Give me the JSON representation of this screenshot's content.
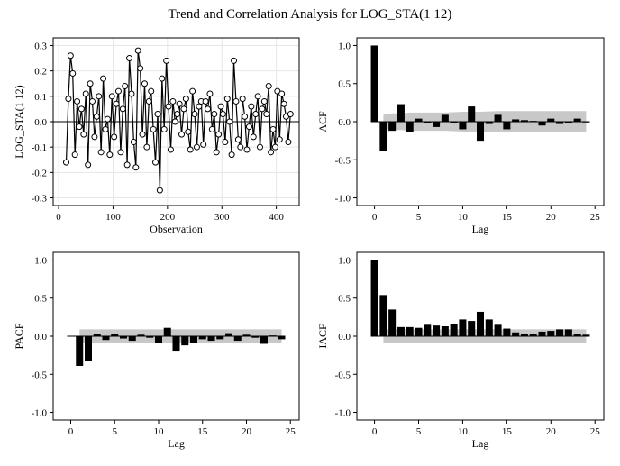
{
  "title": "Trend and Correlation Analysis for LOG_STA(1 12)",
  "chart_data": [
    {
      "type": "line",
      "id": "series",
      "title": "",
      "xlabel": "Observation",
      "ylabel": "LOG_STA(1 12)",
      "xlim": [
        -10,
        442
      ],
      "ylim": [
        -0.33,
        0.33
      ],
      "xticks": [
        0,
        100,
        200,
        300,
        400
      ],
      "yticks": [
        -0.3,
        -0.2,
        -0.1,
        0.0,
        0.1,
        0.2,
        0.3
      ],
      "ytick_labels": [
        "-0.3",
        "-0.2",
        "-0.1",
        "0.0",
        "0.1",
        "0.2",
        "0.3"
      ],
      "grid": true,
      "markers": "open circles",
      "x_start": 14,
      "x_step": 4,
      "y": [
        -0.16,
        0.09,
        0.26,
        0.19,
        -0.13,
        0.08,
        -0.02,
        0.05,
        -0.05,
        0.11,
        -0.17,
        0.15,
        0.08,
        -0.06,
        0.02,
        0.1,
        -0.12,
        0.17,
        -0.03,
        0.01,
        -0.13,
        0.1,
        -0.06,
        0.07,
        0.12,
        -0.12,
        0.05,
        0.14,
        -0.17,
        0.25,
        0.11,
        -0.08,
        -0.18,
        0.28,
        0.21,
        -0.05,
        0.15,
        -0.1,
        0.08,
        0.12,
        -0.03,
        -0.16,
        0.03,
        -0.27,
        0.17,
        -0.03,
        0.24,
        0.06,
        -0.11,
        0.08,
        0.0,
        0.03,
        0.07,
        -0.05,
        0.05,
        0.09,
        -0.04,
        -0.11,
        0.12,
        0.03,
        -0.1,
        0.06,
        0.08,
        -0.09,
        0.08,
        0.05,
        0.11,
        -0.03,
        0.03,
        -0.12,
        -0.05,
        0.06,
        0.03,
        -0.08,
        0.09,
        0.0,
        -0.13,
        0.24,
        0.08,
        -0.07,
        -0.1,
        0.09,
        0.02,
        -0.11,
        -0.02,
        0.06,
        -0.06,
        0.03,
        0.1,
        -0.1,
        0.05,
        0.08,
        0.03,
        0.14,
        -0.12,
        -0.03,
        -0.1,
        0.12,
        -0.07,
        0.11,
        0.07,
        0.02,
        -0.08,
        0.03
      ]
    },
    {
      "type": "bar",
      "id": "acf",
      "xlabel": "Lag",
      "ylabel": "ACF",
      "xlim": [
        -2,
        26
      ],
      "ylim": [
        -1.1,
        1.1
      ],
      "xticks": [
        0,
        5,
        10,
        15,
        20,
        25
      ],
      "yticks": [
        -1.0,
        -0.5,
        0.0,
        0.5,
        1.0
      ],
      "ytick_labels": [
        "-1.0",
        "-0.5",
        "0.0",
        "0.5",
        "1.0"
      ],
      "lags": [
        0,
        1,
        2,
        3,
        4,
        5,
        6,
        7,
        8,
        9,
        10,
        11,
        12,
        13,
        14,
        15,
        16,
        17,
        18,
        19,
        20,
        21,
        22,
        23,
        24
      ],
      "values": [
        1.0,
        -0.39,
        -0.12,
        0.23,
        -0.14,
        0.04,
        -0.02,
        -0.07,
        0.09,
        -0.02,
        -0.1,
        0.2,
        -0.25,
        -0.03,
        0.09,
        -0.1,
        0.03,
        0.02,
        0.01,
        -0.05,
        0.04,
        -0.03,
        -0.02,
        0.04,
        0.0
      ],
      "band_lags": [
        1,
        2,
        3,
        4,
        5,
        6,
        8,
        10,
        12,
        14,
        16,
        18,
        20,
        22,
        24
      ],
      "band_half_width": [
        0.09,
        0.11,
        0.11,
        0.12,
        0.12,
        0.12,
        0.12,
        0.13,
        0.13,
        0.14,
        0.14,
        0.14,
        0.14,
        0.14,
        0.14
      ]
    },
    {
      "type": "bar",
      "id": "pacf",
      "xlabel": "Lag",
      "ylabel": "PACF",
      "xlim": [
        -2,
        26
      ],
      "ylim": [
        -1.1,
        1.1
      ],
      "xticks": [
        0,
        5,
        10,
        15,
        20,
        25
      ],
      "yticks": [
        -1.0,
        -0.5,
        0.0,
        0.5,
        1.0
      ],
      "ytick_labels": [
        "-1.0",
        "-0.5",
        "0.0",
        "0.5",
        "1.0"
      ],
      "lags": [
        1,
        2,
        3,
        4,
        5,
        6,
        7,
        8,
        9,
        10,
        11,
        12,
        13,
        14,
        15,
        16,
        17,
        18,
        19,
        20,
        21,
        22,
        23,
        24
      ],
      "values": [
        -0.39,
        -0.33,
        0.03,
        -0.05,
        0.03,
        -0.03,
        -0.06,
        0.02,
        -0.02,
        -0.09,
        0.11,
        -0.19,
        -0.12,
        -0.09,
        -0.04,
        -0.06,
        -0.04,
        0.04,
        -0.06,
        0.02,
        -0.02,
        -0.1,
        0.01,
        -0.04
      ],
      "band_lags": [
        1,
        24
      ],
      "band_half_width": [
        0.09,
        0.09
      ]
    },
    {
      "type": "bar",
      "id": "iacf",
      "xlabel": "Lag",
      "ylabel": "IACF",
      "xlim": [
        -2,
        26
      ],
      "ylim": [
        -1.1,
        1.1
      ],
      "xticks": [
        0,
        5,
        10,
        15,
        20,
        25
      ],
      "yticks": [
        -1.0,
        -0.5,
        0.0,
        0.5,
        1.0
      ],
      "ytick_labels": [
        "-1.0",
        "-0.5",
        "0.0",
        "0.5",
        "1.0"
      ],
      "lags": [
        0,
        1,
        2,
        3,
        4,
        5,
        6,
        7,
        8,
        9,
        10,
        11,
        12,
        13,
        14,
        15,
        16,
        17,
        18,
        19,
        20,
        21,
        22,
        23,
        24
      ],
      "values": [
        1.0,
        0.54,
        0.35,
        0.12,
        0.12,
        0.11,
        0.15,
        0.14,
        0.13,
        0.16,
        0.22,
        0.2,
        0.32,
        0.22,
        0.15,
        0.1,
        0.05,
        0.03,
        0.03,
        0.06,
        0.07,
        0.09,
        0.09,
        0.03,
        0.02
      ],
      "band_lags": [
        1,
        24
      ],
      "band_half_width": [
        0.09,
        0.09
      ]
    }
  ]
}
